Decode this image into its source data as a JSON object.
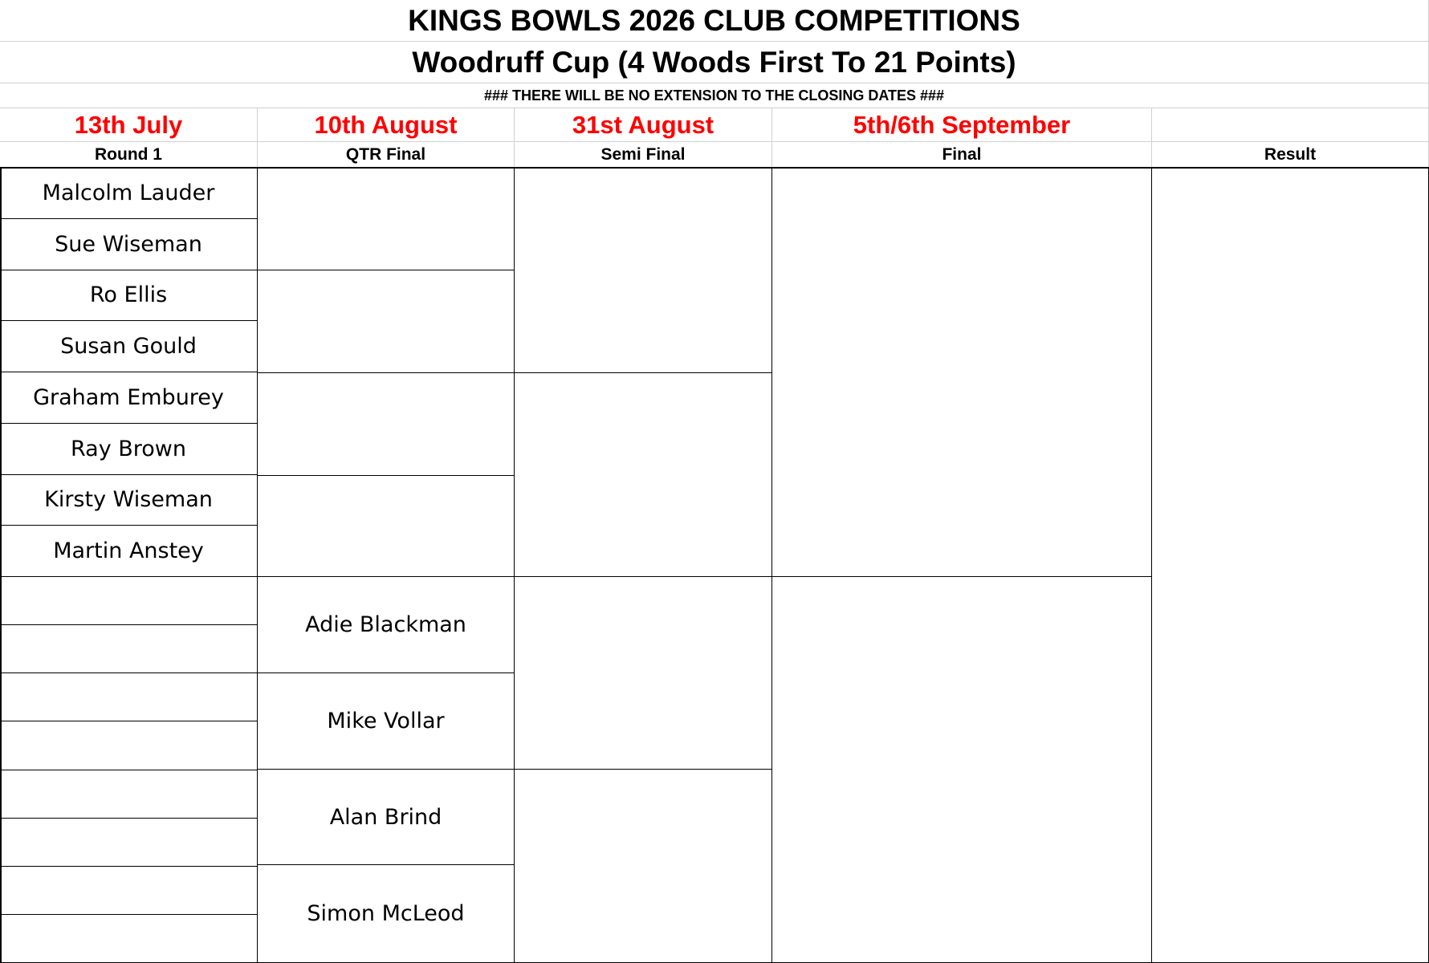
{
  "header": {
    "title": "KINGS BOWLS 2026 CLUB COMPETITIONS",
    "subtitle": "Woodruff Cup (4 Woods First To 21 Points)",
    "note": "###  THERE WILL BE NO EXTENSION TO THE CLOSING DATES  ###"
  },
  "dates": [
    "13th July",
    "10th August",
    "31st August",
    "5th/6th September"
  ],
  "rounds": [
    "Round 1",
    "QTR Final",
    "Semi Final",
    "Final",
    "Result"
  ],
  "round1": [
    "Malcolm Lauder",
    "Sue Wiseman",
    "Ro Ellis",
    "Susan Gould",
    "Graham Emburey",
    "Ray Brown",
    "Kirsty Wiseman",
    "Martin Anstey"
  ],
  "qtr_final": [
    "Adie Blackman",
    "Mike Vollar",
    "Alan Brind",
    "Simon McLeod"
  ]
}
